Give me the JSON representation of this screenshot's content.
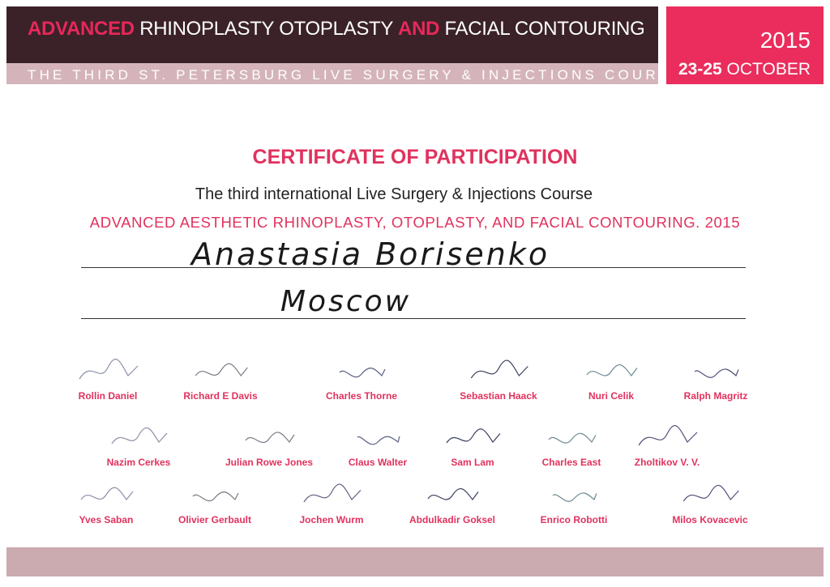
{
  "header": {
    "title_parts": [
      "ADVANCED",
      " RHINOPLASTY  OTOPLASTY ",
      "AND",
      " FACIAL CONTOURING"
    ],
    "subtitle": "THE THIRD ST. PETERSBURG LIVE SURGERY & INJECTIONS COURSE",
    "year": "2015",
    "dates_bold": "23-25",
    "dates_month": " OCTOBER"
  },
  "certificate": {
    "title": "CERTIFICATE OF PARTICIPATION",
    "course": "The third international Live Surgery & Injections Course",
    "program": "ADVANCED AESTHETIC RHINOPLASTY, OTOPLASTY, AND FACIAL CONTOURING. 2015",
    "participant_name": "Anastasia Borisenko",
    "participant_city": "Moscow"
  },
  "signatories": [
    [
      "Rollin Daniel",
      "Richard E Davis",
      "Charles Thorne",
      "Sebastian Haack",
      "Nuri Celik",
      "Ralph Magritz"
    ],
    [
      "Nazim Cerkes",
      "Julian Rowe Jones",
      "Claus Walter",
      "Sam Lam",
      "Charles East",
      "Zholtikov V. V."
    ],
    [
      "Yves Saban",
      "Olivier Gerbault",
      "Jochen Wurm",
      "Abdulkadir Goksel",
      "Enrico Robotti",
      "Milos Kovacevic"
    ]
  ],
  "colors": {
    "accent": "#e0325e",
    "header_dark": "#3a2228",
    "header_sub": "#d4b4ba",
    "date_box": "#ea2d5c"
  }
}
